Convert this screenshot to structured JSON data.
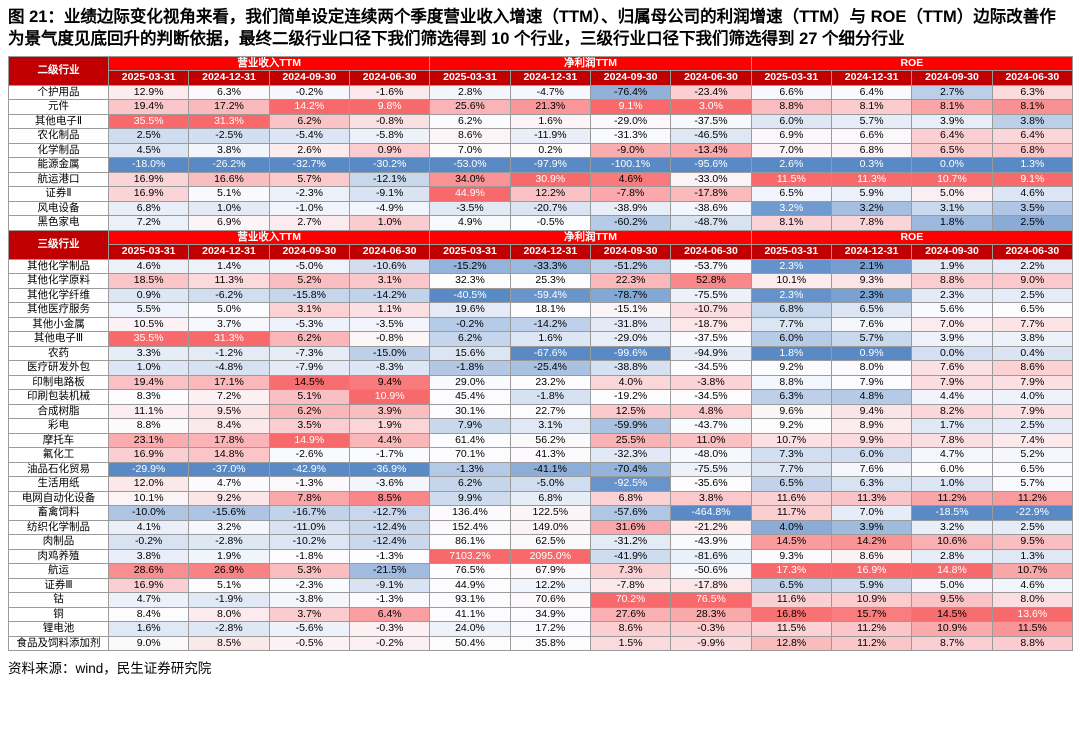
{
  "title": "图 21：业绩边际变化视角来看，我们简单设定连续两个季度营业收入增速（TTM）、归属母公司的利润增速（TTM）与 ROE（TTM）边际改善作为景气度见底回升的判断依据，最终二级行业口径下我们筛选得到 10 个行业，三级行业口径下我们筛选得到 27 个细分行业",
  "source": "资料来源：wind，民生证券研究院",
  "columns": {
    "groups": [
      "营业收入TTM",
      "净利润TTM",
      "ROE"
    ],
    "dates": [
      "2025-03-31",
      "2024-12-31",
      "2024-09-30",
      "2024-06-30"
    ]
  },
  "colors": {
    "header_group_bg": "#FE0000",
    "header_date_bg": "#C00000",
    "corner_bg": "#C00000",
    "scale_red": "#F8696B",
    "scale_white": "#FCFCFF",
    "scale_blue": "#5A8AC6",
    "grid": "#9b9b9b"
  },
  "tables": [
    {
      "label": "二级行业",
      "rows": [
        {
          "name": "个护用品",
          "values": [
            12.9,
            6.3,
            -0.2,
            -1.6,
            2.8,
            -4.7,
            -76.4,
            -23.4,
            6.6,
            6.4,
            2.7,
            6.3
          ]
        },
        {
          "name": "元件",
          "values": [
            19.4,
            17.2,
            14.2,
            9.8,
            25.6,
            21.3,
            9.1,
            3.0,
            8.8,
            8.1,
            8.1,
            8.1
          ]
        },
        {
          "name": "其他电子Ⅱ",
          "values": [
            35.5,
            31.3,
            6.2,
            -0.8,
            6.2,
            1.6,
            -29.0,
            -37.5,
            6.0,
            5.7,
            3.9,
            3.8
          ]
        },
        {
          "name": "农化制品",
          "values": [
            2.5,
            -2.5,
            -5.4,
            -5.8,
            8.6,
            -11.9,
            -31.3,
            -46.5,
            6.9,
            6.6,
            6.4,
            6.4
          ]
        },
        {
          "name": "化学制品",
          "values": [
            4.5,
            3.8,
            2.6,
            0.9,
            7.0,
            0.2,
            -9.0,
            -13.4,
            7.0,
            6.8,
            6.5,
            6.8
          ]
        },
        {
          "name": "能源金属",
          "values": [
            -18.0,
            -26.2,
            -32.7,
            -30.2,
            -53.0,
            -97.9,
            -100.1,
            -95.6,
            2.6,
            0.3,
            0.0,
            1.3
          ]
        },
        {
          "name": "航运港口",
          "values": [
            16.9,
            16.6,
            5.7,
            -12.1,
            34.0,
            30.9,
            4.6,
            -33.0,
            11.5,
            11.3,
            10.7,
            9.1
          ]
        },
        {
          "name": "证券Ⅱ",
          "values": [
            16.9,
            5.1,
            -2.3,
            -9.1,
            44.9,
            12.2,
            -7.8,
            -17.8,
            6.5,
            5.9,
            5.0,
            4.6
          ]
        },
        {
          "name": "风电设备",
          "values": [
            6.8,
            1.0,
            -1.0,
            -4.9,
            -3.5,
            -20.7,
            -38.9,
            -38.6,
            3.2,
            3.2,
            3.1,
            3.5
          ]
        },
        {
          "name": "黑色家电",
          "values": [
            7.2,
            6.9,
            2.7,
            1.0,
            4.9,
            -0.5,
            -60.2,
            -48.7,
            8.1,
            7.8,
            1.8,
            2.5
          ]
        }
      ]
    },
    {
      "label": "三级行业",
      "rows": [
        {
          "name": "其他化学制品",
          "values": [
            4.6,
            1.4,
            -5.0,
            -10.6,
            -15.2,
            -33.3,
            -51.2,
            -53.7,
            2.3,
            2.1,
            1.9,
            2.2
          ]
        },
        {
          "name": "其他化学原料",
          "values": [
            18.5,
            11.3,
            5.2,
            3.1,
            32.3,
            25.3,
            22.3,
            52.8,
            10.1,
            9.3,
            8.8,
            9.0
          ]
        },
        {
          "name": "其他化学纤维",
          "values": [
            0.9,
            -6.2,
            -15.8,
            -14.2,
            -40.5,
            -59.4,
            -78.7,
            -75.5,
            2.3,
            2.3,
            2.3,
            2.5
          ]
        },
        {
          "name": "其他医疗服务",
          "values": [
            5.5,
            5.0,
            3.1,
            1.1,
            19.6,
            18.1,
            -15.1,
            -10.7,
            6.8,
            6.5,
            5.6,
            6.5
          ]
        },
        {
          "name": "其他小金属",
          "values": [
            10.5,
            3.7,
            -5.3,
            -3.5,
            -0.2,
            -14.2,
            -31.8,
            -18.7,
            7.7,
            7.6,
            7.0,
            7.7
          ]
        },
        {
          "name": "其他电子Ⅲ",
          "values": [
            35.5,
            31.3,
            6.2,
            -0.8,
            6.2,
            1.6,
            -29.0,
            -37.5,
            6.0,
            5.7,
            3.9,
            3.8
          ]
        },
        {
          "name": "农药",
          "values": [
            3.3,
            -1.2,
            -7.3,
            -15.0,
            15.6,
            -67.6,
            -99.6,
            -94.9,
            1.8,
            0.9,
            0.0,
            0.4
          ]
        },
        {
          "name": "医疗研发外包",
          "values": [
            1.0,
            -4.8,
            -7.9,
            -8.3,
            -1.8,
            -25.4,
            -38.8,
            -34.5,
            9.2,
            8.0,
            7.6,
            8.6
          ]
        },
        {
          "name": "印制电路板",
          "values": [
            19.4,
            17.1,
            14.5,
            9.4,
            29.0,
            23.2,
            4.0,
            -3.8,
            8.8,
            7.9,
            7.9,
            7.9
          ]
        },
        {
          "name": "印刷包装机械",
          "values": [
            8.3,
            7.2,
            5.1,
            10.9,
            45.4,
            -1.8,
            -19.2,
            -34.5,
            6.3,
            4.8,
            4.4,
            4.0
          ]
        },
        {
          "name": "合成树脂",
          "values": [
            11.1,
            9.5,
            6.2,
            3.9,
            30.1,
            22.7,
            12.5,
            4.8,
            9.6,
            9.4,
            8.2,
            7.9
          ]
        },
        {
          "name": "彩电",
          "values": [
            8.8,
            8.4,
            3.5,
            1.9,
            7.9,
            3.1,
            -59.9,
            -43.7,
            9.2,
            8.9,
            1.7,
            2.5
          ]
        },
        {
          "name": "摩托车",
          "values": [
            23.1,
            17.8,
            14.9,
            4.4,
            61.4,
            56.2,
            25.5,
            11.0,
            10.7,
            9.9,
            7.8,
            7.4
          ]
        },
        {
          "name": "氟化工",
          "values": [
            16.9,
            14.8,
            -2.6,
            -1.7,
            70.1,
            41.3,
            -32.3,
            -48.0,
            7.3,
            6.0,
            4.7,
            5.2
          ]
        },
        {
          "name": "油品石化贸易",
          "values": [
            -29.9,
            -37.0,
            -42.9,
            -36.9,
            -1.3,
            -41.1,
            -70.4,
            -75.5,
            7.7,
            7.6,
            6.0,
            6.5
          ]
        },
        {
          "name": "生活用纸",
          "values": [
            12.0,
            4.7,
            -1.3,
            -3.6,
            6.2,
            -5.0,
            -92.5,
            -35.6,
            6.5,
            6.3,
            1.0,
            5.7
          ]
        },
        {
          "name": "电网自动化设备",
          "values": [
            10.1,
            9.2,
            7.8,
            8.5,
            9.9,
            6.8,
            6.8,
            3.8,
            11.6,
            11.3,
            11.2,
            11.2
          ]
        },
        {
          "name": "畜禽饲料",
          "values": [
            -10.0,
            -15.6,
            -16.7,
            -12.7,
            136.4,
            122.5,
            -57.6,
            -464.8,
            11.7,
            7.0,
            -18.5,
            -22.9
          ]
        },
        {
          "name": "纺织化学制品",
          "values": [
            4.1,
            3.2,
            -11.0,
            -12.4,
            152.4,
            149.0,
            31.6,
            -21.2,
            4.0,
            3.9,
            3.2,
            2.5
          ]
        },
        {
          "name": "肉制品",
          "values": [
            -0.2,
            -2.8,
            -10.2,
            -12.4,
            86.1,
            62.5,
            -31.2,
            -43.9,
            14.5,
            14.2,
            10.6,
            9.5
          ]
        },
        {
          "name": "肉鸡养殖",
          "values": [
            3.8,
            1.9,
            -1.8,
            -1.3,
            7103.2,
            2095.0,
            -41.9,
            -81.6,
            9.3,
            8.6,
            2.8,
            1.3
          ]
        },
        {
          "name": "航运",
          "values": [
            28.6,
            26.9,
            5.3,
            -21.5,
            76.5,
            67.9,
            7.3,
            -50.6,
            17.3,
            16.9,
            14.8,
            10.7
          ]
        },
        {
          "name": "证券Ⅲ",
          "values": [
            16.9,
            5.1,
            -2.3,
            -9.1,
            44.9,
            12.2,
            -7.8,
            -17.8,
            6.5,
            5.9,
            5.0,
            4.6
          ]
        },
        {
          "name": "钴",
          "values": [
            4.7,
            -1.9,
            -3.8,
            -1.3,
            93.1,
            70.6,
            70.2,
            76.5,
            11.6,
            10.9,
            9.5,
            8.0
          ]
        },
        {
          "name": "铜",
          "values": [
            8.4,
            8.0,
            3.7,
            6.4,
            41.1,
            34.9,
            27.6,
            28.3,
            16.8,
            15.7,
            14.5,
            13.6
          ]
        },
        {
          "name": "锂电池",
          "values": [
            1.6,
            -2.8,
            -5.6,
            -0.3,
            24.0,
            17.2,
            8.6,
            -0.3,
            11.5,
            11.2,
            10.9,
            11.5
          ]
        },
        {
          "name": "食品及饲料添加剂",
          "values": [
            9.0,
            8.5,
            -0.5,
            -0.2,
            50.4,
            35.8,
            1.5,
            -9.9,
            12.8,
            11.2,
            8.7,
            8.8
          ]
        }
      ]
    }
  ]
}
